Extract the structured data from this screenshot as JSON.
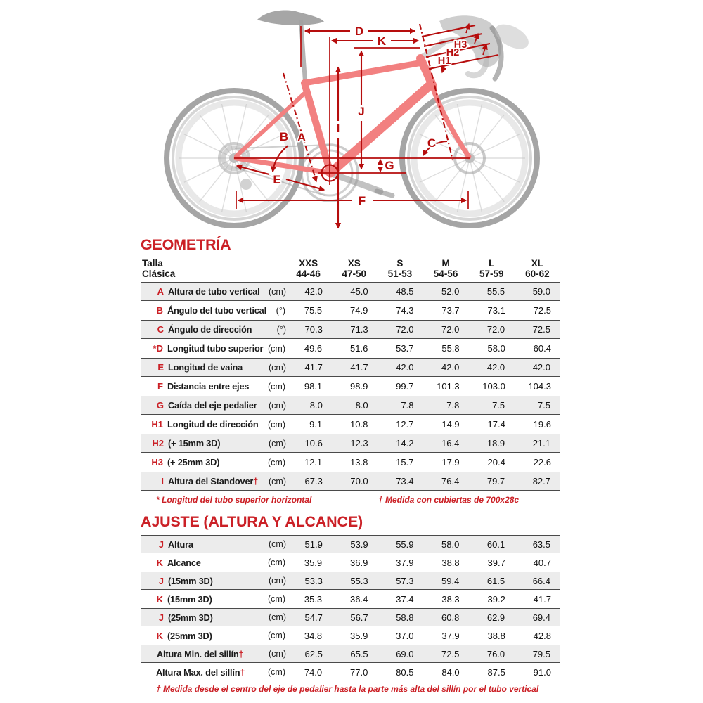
{
  "bike": {
    "labels": {
      "A": "A",
      "B": "B",
      "C": "C",
      "D": "D",
      "E": "E",
      "F": "F",
      "G": "G",
      "H1": "H1",
      "H2": "H2",
      "H3": "H3",
      "I": "I",
      "J": "J",
      "K": "K"
    }
  },
  "geometry": {
    "title": "GEOMETRÍA",
    "size_header": {
      "line1": "Talla",
      "line2": "Clásica"
    },
    "columns": [
      {
        "size": "XXS",
        "range": "44-46"
      },
      {
        "size": "XS",
        "range": "47-50"
      },
      {
        "size": "S",
        "range": "51-53"
      },
      {
        "size": "M",
        "range": "54-56"
      },
      {
        "size": "L",
        "range": "57-59"
      },
      {
        "size": "XL",
        "range": "60-62"
      }
    ],
    "rows": [
      {
        "letter": "A",
        "name": "Altura de tubo vertical",
        "unit": "(cm)",
        "values": [
          "42.0",
          "45.0",
          "48.5",
          "52.0",
          "55.5",
          "59.0"
        ],
        "shaded": true
      },
      {
        "letter": "B",
        "name": "Ángulo del tubo vertical",
        "unit": "(°)",
        "values": [
          "75.5",
          "74.9",
          "74.3",
          "73.7",
          "73.1",
          "72.5"
        ],
        "shaded": false
      },
      {
        "letter": "C",
        "name": "Ángulo de dirección",
        "unit": "(°)",
        "values": [
          "70.3",
          "71.3",
          "72.0",
          "72.0",
          "72.0",
          "72.5"
        ],
        "shaded": true
      },
      {
        "prefix": "*",
        "letter": "D",
        "name": "Longitud tubo superior",
        "unit": "(cm)",
        "values": [
          "49.6",
          "51.6",
          "53.7",
          "55.8",
          "58.0",
          "60.4"
        ],
        "shaded": false
      },
      {
        "letter": "E",
        "name": "Longitud de vaina",
        "unit": "(cm)",
        "values": [
          "41.7",
          "41.7",
          "42.0",
          "42.0",
          "42.0",
          "42.0"
        ],
        "shaded": true
      },
      {
        "letter": "F",
        "name": "Distancia entre ejes",
        "unit": "(cm)",
        "values": [
          "98.1",
          "98.9",
          "99.7",
          "101.3",
          "103.0",
          "104.3"
        ],
        "shaded": false
      },
      {
        "letter": "G",
        "name": "Caída del eje pedalier",
        "unit": "(cm)",
        "values": [
          "8.0",
          "8.0",
          "7.8",
          "7.8",
          "7.5",
          "7.5"
        ],
        "shaded": true
      },
      {
        "letter": "H1",
        "name": "Longitud de dirección",
        "unit": "(cm)",
        "values": [
          "9.1",
          "10.8",
          "12.7",
          "14.9",
          "17.4",
          "19.6"
        ],
        "shaded": false
      },
      {
        "letter": "H2",
        "name": "(+ 15mm 3D)",
        "unit": "(cm)",
        "values": [
          "10.6",
          "12.3",
          "14.2",
          "16.4",
          "18.9",
          "21.1"
        ],
        "shaded": true
      },
      {
        "letter": "H3",
        "name": "(+ 25mm 3D)",
        "unit": "(cm)",
        "values": [
          "12.1",
          "13.8",
          "15.7",
          "17.9",
          "20.4",
          "22.6"
        ],
        "shaded": false
      },
      {
        "letter": "I",
        "name": "Altura del Standover",
        "suffix": "†",
        "unit": "(cm)",
        "values": [
          "67.3",
          "70.0",
          "73.4",
          "76.4",
          "79.7",
          "82.7"
        ],
        "shaded": true
      }
    ],
    "footnote_left": "* Longitud del tubo superior horizontal",
    "footnote_right": "† Medida con cubiertas de 700x28c"
  },
  "adjust": {
    "title": "AJUSTE (ALTURA Y ALCANCE)",
    "rows": [
      {
        "letter": "J",
        "name": "Altura",
        "unit": "(cm)",
        "values": [
          "51.9",
          "53.9",
          "55.9",
          "58.0",
          "60.1",
          "63.5"
        ],
        "shaded": true
      },
      {
        "letter": "K",
        "name": "Alcance",
        "unit": "(cm)",
        "values": [
          "35.9",
          "36.9",
          "37.9",
          "38.8",
          "39.7",
          "40.7"
        ],
        "shaded": false
      },
      {
        "letter": "J",
        "name": "(15mm 3D)",
        "unit": "(cm)",
        "values": [
          "53.3",
          "55.3",
          "57.3",
          "59.4",
          "61.5",
          "66.4"
        ],
        "shaded": true
      },
      {
        "letter": "K",
        "name": "(15mm 3D)",
        "unit": "(cm)",
        "values": [
          "35.3",
          "36.4",
          "37.4",
          "38.3",
          "39.2",
          "41.7"
        ],
        "shaded": false
      },
      {
        "letter": "J",
        "name": "(25mm 3D)",
        "unit": "(cm)",
        "values": [
          "54.7",
          "56.7",
          "58.8",
          "60.8",
          "62.9",
          "69.4"
        ],
        "shaded": true
      },
      {
        "letter": "K",
        "name": "(25mm 3D)",
        "unit": "(cm)",
        "values": [
          "34.8",
          "35.9",
          "37.0",
          "37.9",
          "38.8",
          "42.8"
        ],
        "shaded": false
      },
      {
        "letter": "",
        "name": "Altura Min. del sillín",
        "suffix": "†",
        "unit": "(cm)",
        "values": [
          "62.5",
          "65.5",
          "69.0",
          "72.5",
          "76.0",
          "79.5"
        ],
        "shaded": true
      },
      {
        "letter": "",
        "name": "Altura Max. del sillín",
        "suffix": "†",
        "unit": "(cm)",
        "values": [
          "74.0",
          "77.0",
          "80.5",
          "84.0",
          "87.5",
          "91.0"
        ],
        "shaded": false
      }
    ],
    "footnote": "† Medida desde el centro del eje de pedalier hasta la parte más alta del sillín por el tubo vertical"
  },
  "colors": {
    "accent_red": "#cb2026",
    "annotation_red": "#b60d0d",
    "row_shade": "#ececec",
    "frame_pink": "#f28080"
  }
}
